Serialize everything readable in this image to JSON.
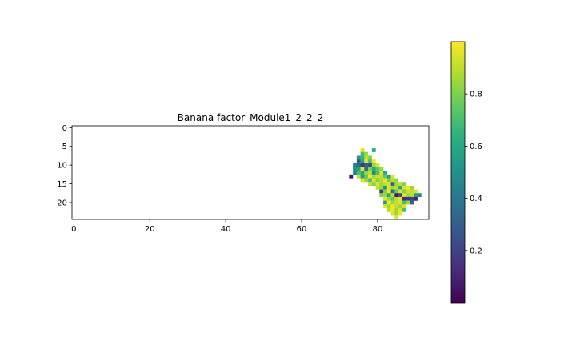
{
  "chart_data": {
    "type": "heatmap",
    "title": "Banana factor_Module1_2_2_2",
    "xlabel": "",
    "ylabel": "",
    "x_ticks": [
      0,
      20,
      40,
      60,
      80
    ],
    "y_ticks": [
      0,
      5,
      10,
      15,
      20
    ],
    "xlim": [
      -0.5,
      93.5
    ],
    "ylim": [
      24.5,
      -0.5
    ],
    "colormap": "viridis",
    "colorbar": {
      "min": 0.0,
      "max": 1.0,
      "ticks": [
        0.2,
        0.4,
        0.6,
        0.8
      ]
    },
    "grid": false,
    "cells": [
      [
        6,
        76,
        0.95
      ],
      [
        6,
        79,
        0.62
      ],
      [
        7,
        76,
        0.7
      ],
      [
        7,
        77,
        0.85
      ],
      [
        8,
        75,
        0.55
      ],
      [
        8,
        76,
        0.65
      ],
      [
        8,
        77,
        0.9
      ],
      [
        8,
        78,
        0.8
      ],
      [
        9,
        75,
        0.25
      ],
      [
        9,
        76,
        0.6
      ],
      [
        9,
        77,
        0.95
      ],
      [
        9,
        78,
        0.7
      ],
      [
        9,
        79,
        0.98
      ],
      [
        10,
        74,
        0.45
      ],
      [
        10,
        75,
        0.35
      ],
      [
        10,
        76,
        0.15
      ],
      [
        10,
        77,
        0.3
      ],
      [
        10,
        78,
        0.2
      ],
      [
        10,
        79,
        0.85
      ],
      [
        10,
        80,
        0.95
      ],
      [
        11,
        74,
        0.5
      ],
      [
        11,
        75,
        0.55
      ],
      [
        11,
        76,
        0.95
      ],
      [
        11,
        77,
        0.35
      ],
      [
        11,
        78,
        0.8
      ],
      [
        11,
        79,
        0.6
      ],
      [
        11,
        80,
        0.75
      ],
      [
        11,
        81,
        0.85
      ],
      [
        12,
        74,
        0.45
      ],
      [
        12,
        75,
        0.7
      ],
      [
        12,
        76,
        0.6
      ],
      [
        12,
        77,
        0.85
      ],
      [
        12,
        78,
        0.9
      ],
      [
        12,
        79,
        0.45
      ],
      [
        12,
        80,
        0.7
      ],
      [
        12,
        81,
        0.95
      ],
      [
        12,
        82,
        0.6
      ],
      [
        13,
        73,
        0.05
      ],
      [
        13,
        75,
        0.9
      ],
      [
        13,
        76,
        0.55
      ],
      [
        13,
        77,
        0.75
      ],
      [
        13,
        78,
        0.98
      ],
      [
        13,
        79,
        0.85
      ],
      [
        13,
        80,
        0.92
      ],
      [
        13,
        81,
        0.9
      ],
      [
        13,
        82,
        0.75
      ],
      [
        13,
        83,
        0.55
      ],
      [
        13,
        84,
        0.95
      ],
      [
        14,
        76,
        0.95
      ],
      [
        14,
        77,
        0.85
      ],
      [
        14,
        78,
        0.7
      ],
      [
        14,
        79,
        0.95
      ],
      [
        14,
        80,
        0.8
      ],
      [
        14,
        81,
        0.88
      ],
      [
        14,
        82,
        0.98
      ],
      [
        14,
        83,
        0.8
      ],
      [
        14,
        84,
        0.9
      ],
      [
        14,
        85,
        0.85
      ],
      [
        15,
        78,
        0.92
      ],
      [
        15,
        79,
        0.8
      ],
      [
        15,
        80,
        0.95
      ],
      [
        15,
        81,
        0.85
      ],
      [
        15,
        82,
        0.9
      ],
      [
        15,
        83,
        0.95
      ],
      [
        15,
        84,
        0.3
      ],
      [
        15,
        85,
        0.85
      ],
      [
        15,
        86,
        0.9
      ],
      [
        15,
        87,
        0.8
      ],
      [
        16,
        80,
        0.9
      ],
      [
        16,
        81,
        0.85
      ],
      [
        16,
        82,
        0.5
      ],
      [
        16,
        83,
        0.95
      ],
      [
        16,
        84,
        0.85
      ],
      [
        16,
        85,
        0.9
      ],
      [
        16,
        86,
        0.6
      ],
      [
        16,
        87,
        0.95
      ],
      [
        16,
        88,
        0.98
      ],
      [
        16,
        89,
        0.85
      ],
      [
        17,
        81,
        0.15
      ],
      [
        17,
        82,
        0.8
      ],
      [
        17,
        83,
        0.98
      ],
      [
        17,
        84,
        0.35
      ],
      [
        17,
        85,
        0.75
      ],
      [
        17,
        86,
        0.95
      ],
      [
        17,
        87,
        0.8
      ],
      [
        17,
        88,
        0.92
      ],
      [
        17,
        89,
        0.9
      ],
      [
        17,
        90,
        0.95
      ],
      [
        18,
        81,
        0.8
      ],
      [
        18,
        82,
        0.85
      ],
      [
        18,
        83,
        0.6
      ],
      [
        18,
        84,
        0.9
      ],
      [
        18,
        85,
        0.05
      ],
      [
        18,
        86,
        0.2
      ],
      [
        18,
        87,
        0.95
      ],
      [
        18,
        88,
        0.85
      ],
      [
        18,
        89,
        0.9
      ],
      [
        18,
        90,
        0.55
      ],
      [
        18,
        91,
        0.45
      ],
      [
        19,
        82,
        0.95
      ],
      [
        19,
        83,
        0.85
      ],
      [
        19,
        84,
        0.75
      ],
      [
        19,
        85,
        0.9
      ],
      [
        19,
        86,
        0.95
      ],
      [
        19,
        87,
        0.12
      ],
      [
        19,
        88,
        0.15
      ],
      [
        19,
        89,
        0.2
      ],
      [
        19,
        90,
        0.1
      ],
      [
        20,
        82,
        0.55
      ],
      [
        20,
        83,
        0.98
      ],
      [
        20,
        84,
        0.85
      ],
      [
        20,
        85,
        0.9
      ],
      [
        20,
        86,
        0.95
      ],
      [
        20,
        87,
        0.7
      ],
      [
        20,
        88,
        0.85
      ],
      [
        20,
        89,
        0.3
      ],
      [
        21,
        82,
        0.95
      ],
      [
        21,
        83,
        0.85
      ],
      [
        21,
        84,
        0.98
      ],
      [
        21,
        85,
        0.9
      ],
      [
        21,
        86,
        0.85
      ],
      [
        21,
        87,
        0.95
      ],
      [
        22,
        83,
        0.9
      ],
      [
        22,
        84,
        0.98
      ],
      [
        22,
        85,
        0.85
      ],
      [
        22,
        86,
        0.95
      ],
      [
        22,
        87,
        0.7
      ],
      [
        23,
        84,
        0.95
      ],
      [
        23,
        85,
        0.85
      ],
      [
        23,
        86,
        0.98
      ],
      [
        24,
        85,
        0.95
      ]
    ]
  }
}
